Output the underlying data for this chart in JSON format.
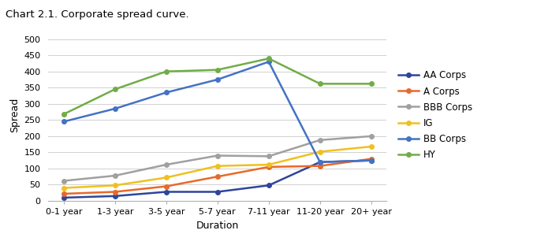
{
  "title": "Chart 2.1. Corporate spread curve.",
  "xlabel": "Duration",
  "ylabel": "Spread",
  "categories": [
    "0-1 year",
    "1-3 year",
    "3-5 year",
    "5-7 year",
    "7-11 year",
    "11-20 year",
    "20+ year"
  ],
  "series": [
    {
      "name": "AA Corps",
      "color": "#2E4699",
      "marker": "o",
      "values": [
        10,
        15,
        28,
        28,
        48,
        120,
        125
      ]
    },
    {
      "name": "A Corps",
      "color": "#E8692A",
      "marker": "o",
      "values": [
        22,
        28,
        45,
        75,
        105,
        108,
        130
      ]
    },
    {
      "name": "BBB Corps",
      "color": "#A0A0A0",
      "marker": "o",
      "values": [
        62,
        78,
        112,
        140,
        138,
        188,
        200
      ]
    },
    {
      "name": "IG",
      "color": "#F0C020",
      "marker": "o",
      "values": [
        40,
        48,
        72,
        108,
        112,
        152,
        168
      ]
    },
    {
      "name": "BB Corps",
      "color": "#4472C4",
      "marker": "o",
      "values": [
        245,
        285,
        335,
        375,
        430,
        120,
        125
      ]
    },
    {
      "name": "HY",
      "color": "#70AD47",
      "marker": "o",
      "values": [
        268,
        345,
        400,
        405,
        440,
        362,
        362
      ]
    }
  ],
  "ylim": [
    0,
    530
  ],
  "yticks": [
    0,
    50,
    100,
    150,
    200,
    250,
    300,
    350,
    400,
    450,
    500
  ],
  "background_color": "#ffffff",
  "title_fontsize": 9.5,
  "axis_fontsize": 9,
  "tick_fontsize": 8,
  "legend_fontsize": 8.5
}
